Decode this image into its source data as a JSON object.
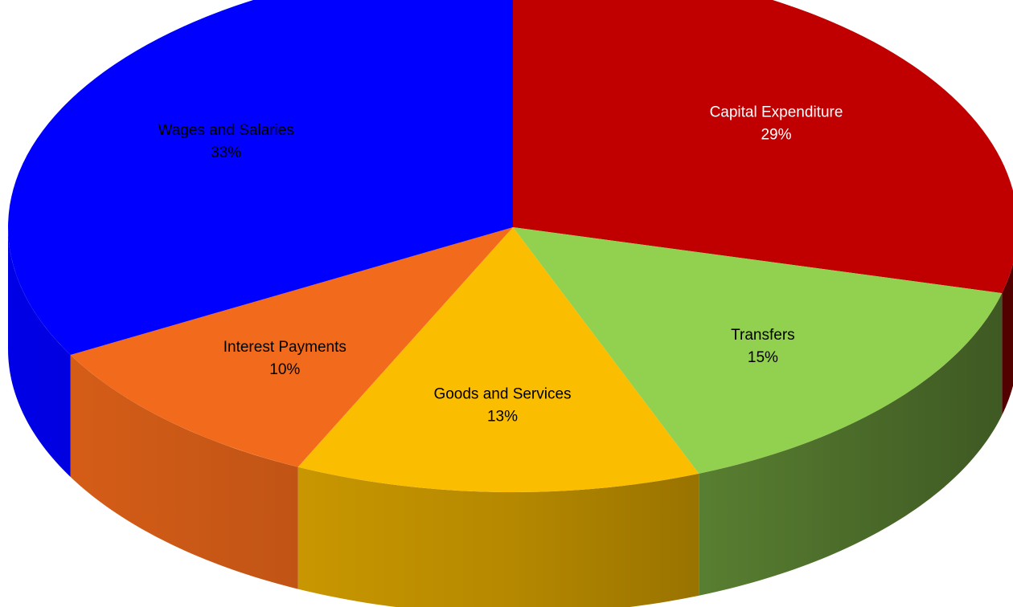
{
  "chart_data": {
    "type": "pie",
    "style": "3d",
    "title": "",
    "legend": "none",
    "slices": [
      {
        "name": "Capital Expenditure",
        "value": 29,
        "label": "29%",
        "color": "#c00000",
        "label_color": "#ffffff"
      },
      {
        "name": "Transfers",
        "value": 15,
        "label": "15%",
        "color": "#92d050",
        "label_color": "#000000"
      },
      {
        "name": "Goods and Services",
        "value": 13,
        "label": "13%",
        "color": "#fbbd00",
        "label_color": "#000000"
      },
      {
        "name": "Interest Payments",
        "value": 10,
        "label": "10%",
        "color": "#f26a1b",
        "label_color": "#000000"
      },
      {
        "name": "Wages and Salaries",
        "value": 33,
        "label": "33%",
        "color": "#0000ff",
        "label_color": "#000000"
      }
    ]
  }
}
